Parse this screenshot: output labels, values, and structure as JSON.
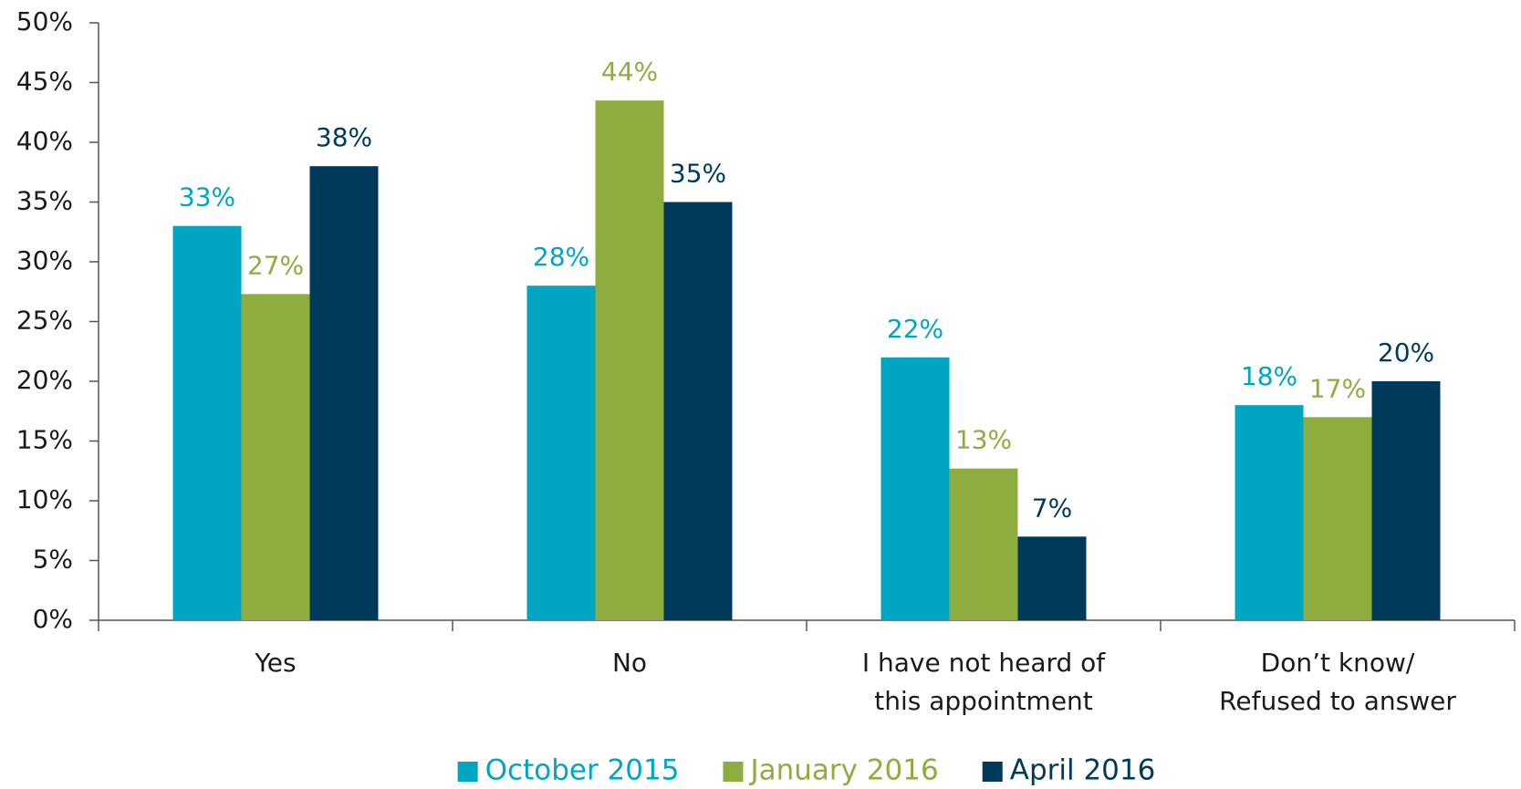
{
  "chart_data": {
    "type": "bar",
    "categories": [
      [
        "Yes"
      ],
      [
        "No"
      ],
      [
        "I have not heard of",
        "this appointment"
      ],
      [
        "Don’t know/",
        "Refused to answer"
      ]
    ],
    "series": [
      {
        "name": "October 2015",
        "color": "#00a5c2",
        "values": [
          33,
          28,
          22,
          18
        ],
        "value_labels": [
          "33%",
          "28%",
          "22%",
          "18%"
        ]
      },
      {
        "name": "January 2016",
        "color": "#8fad3f",
        "values": [
          27.3,
          43.5,
          12.7,
          17
        ],
        "value_labels": [
          "27%",
          "44%",
          "13%",
          "17%"
        ]
      },
      {
        "name": "April 2016",
        "color": "#003a5a",
        "values": [
          38,
          35,
          7,
          20
        ],
        "value_labels": [
          "38%",
          "35%",
          "7%",
          "20%"
        ]
      }
    ],
    "ylim": [
      0,
      50
    ],
    "yticks": [
      {
        "value": 0,
        "label": "0%"
      },
      {
        "value": 5,
        "label": "5%"
      },
      {
        "value": 10,
        "label": "10%"
      },
      {
        "value": 15,
        "label": "15%"
      },
      {
        "value": 20,
        "label": "20%"
      },
      {
        "value": 25,
        "label": "25%"
      },
      {
        "value": 30,
        "label": "30%"
      },
      {
        "value": 35,
        "label": "35%"
      },
      {
        "value": 40,
        "label": "40%"
      },
      {
        "value": 45,
        "label": "45%"
      },
      {
        "value": 50,
        "label": "50%"
      }
    ],
    "legend": "bottom"
  }
}
